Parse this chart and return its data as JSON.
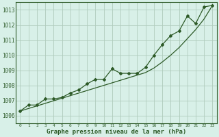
{
  "xlabel": "Graphe pression niveau de la mer (hPa)",
  "bg_color": "#d8f0e8",
  "grid_color": "#b0ccbc",
  "line_color": "#2d5a27",
  "x_ticks": [
    0,
    1,
    2,
    3,
    4,
    5,
    6,
    7,
    8,
    9,
    10,
    11,
    12,
    13,
    14,
    15,
    16,
    17,
    18,
    19,
    20,
    21,
    22,
    23
  ],
  "ylim": [
    1005.5,
    1013.5
  ],
  "yticks": [
    1006,
    1007,
    1008,
    1009,
    1010,
    1011,
    1012,
    1013
  ],
  "data_y": [
    1006.3,
    1006.7,
    1006.7,
    1007.1,
    1007.1,
    1007.2,
    1007.5,
    1007.7,
    1008.1,
    1008.4,
    1008.4,
    1009.1,
    1008.8,
    1008.8,
    1008.8,
    1009.2,
    1010.0,
    1010.7,
    1011.3,
    1011.6,
    1012.6,
    1012.1,
    1013.2,
    1013.3
  ],
  "trend_y": [
    1006.3,
    1006.47,
    1006.64,
    1006.81,
    1006.98,
    1007.15,
    1007.32,
    1007.49,
    1007.66,
    1007.83,
    1008.0,
    1008.17,
    1008.34,
    1008.51,
    1008.68,
    1008.85,
    1009.15,
    1009.55,
    1010.0,
    1010.5,
    1011.1,
    1011.7,
    1012.4,
    1013.3
  ]
}
